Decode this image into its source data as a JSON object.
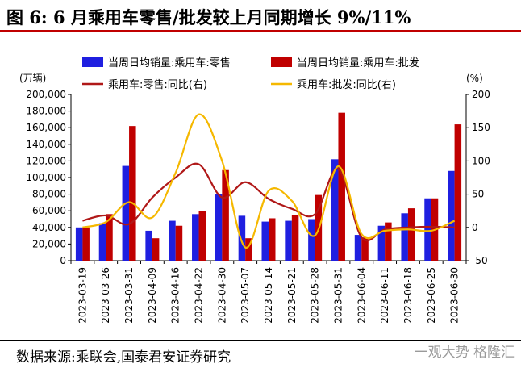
{
  "title": "图 6:  6 月乘用车零售/批发较上月同期增长 9%/11%",
  "source": "数据来源:乘联会,国泰君安证券研究",
  "watermark": "一观大势 格隆汇",
  "chart_data": {
    "type": "bar+line",
    "left_unit": "(万辆)",
    "right_unit": "(%)",
    "categories": [
      "2023-03-19",
      "2023-03-26",
      "2023-03-31",
      "2023-04-09",
      "2023-04-16",
      "2023-04-22",
      "2023-04-30",
      "2023-05-07",
      "2023-05-14",
      "2023-05-21",
      "2023-05-28",
      "2023-05-31",
      "2023-06-04",
      "2023-06-11",
      "2023-06-18",
      "2023-06-25",
      "2023-06-30"
    ],
    "y_left": {
      "min": 0,
      "max": 200000,
      "ticks": [
        "0",
        "20,000",
        "40,000",
        "60,000",
        "80,000",
        "100,000",
        "120,000",
        "140,000",
        "160,000",
        "180,000",
        "200,000"
      ]
    },
    "y_right": {
      "min": -50,
      "max": 200,
      "ticks": [
        "-50",
        "0",
        "50",
        "100",
        "150",
        "200"
      ]
    },
    "bar_series": [
      {
        "name": "当周日均销量:乘用车:零售",
        "color": "#1f1fe0",
        "values": [
          40000,
          45000,
          114000,
          36000,
          48000,
          56000,
          80000,
          54000,
          47000,
          48000,
          50000,
          122000,
          31000,
          42000,
          57000,
          75000,
          108000
        ]
      },
      {
        "name": "当周日均销量:乘用车:批发",
        "color": "#c00000",
        "values": [
          40000,
          56000,
          162000,
          27000,
          42000,
          60000,
          109000,
          27000,
          51000,
          55000,
          79000,
          178000,
          28000,
          46000,
          63000,
          75000,
          164000
        ]
      }
    ],
    "line_series": [
      {
        "name": "乘用车:零售:同比(右)",
        "color": "#b01818",
        "values": [
          10,
          18,
          5,
          45,
          75,
          95,
          45,
          68,
          43,
          28,
          20,
          88,
          -15,
          -3,
          0,
          1,
          0
        ]
      },
      {
        "name": "乘用车:批发:同比(右)",
        "color": "#f5b800",
        "values": [
          0,
          8,
          38,
          15,
          82,
          170,
          100,
          -30,
          55,
          40,
          -12,
          92,
          -10,
          -5,
          -3,
          -5,
          10
        ]
      }
    ],
    "grid": false,
    "legend": "top"
  }
}
